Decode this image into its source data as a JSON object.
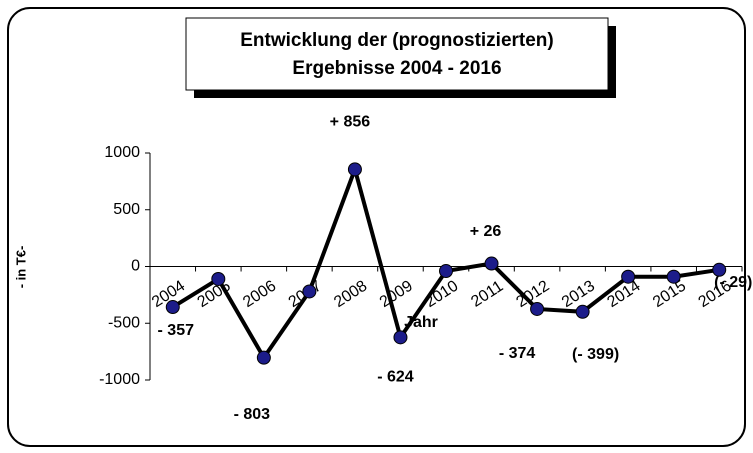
{
  "chart_data": {
    "type": "line",
    "title": [
      "Entwicklung der (prognostizierten)",
      "Ergebnisse 2004 - 2016"
    ],
    "y_label": "- in T€-",
    "x_label": "Jahr",
    "categories": [
      "2004",
      "2005",
      "2006",
      "2007",
      "2008",
      "2009",
      "2010",
      "2011",
      "2012",
      "2013",
      "2014",
      "2015",
      "2016"
    ],
    "values": [
      -357,
      -110,
      -803,
      -220,
      856,
      -624,
      -40,
      26,
      -374,
      -399,
      -90,
      -90,
      -29
    ],
    "value_labels": [
      "- 357",
      null,
      "- 803",
      null,
      "+ 856",
      "- 624",
      null,
      "+ 26",
      "- 374",
      "(- 399)",
      null,
      null,
      "(- 29)"
    ],
    "color": "#000000",
    "marker_color": "#1c1c8a",
    "ylim": [
      -1000,
      1000
    ],
    "yticks": [
      -1000,
      -500,
      0,
      500,
      1000
    ],
    "grid": false
  }
}
